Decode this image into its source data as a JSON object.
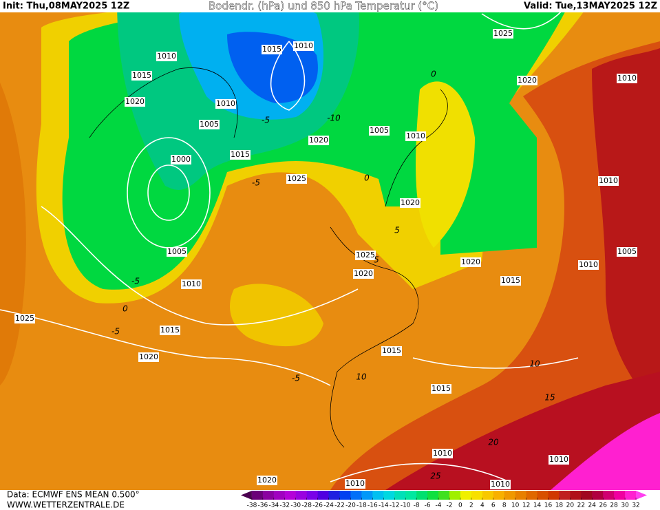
{
  "header": {
    "init": "Init: Thu,08MAY2025 12Z",
    "title": "Bodendr. (hPa) und 850 hPa Temperatur (°C)",
    "valid": "Valid: Tue,13MAY2025 12Z"
  },
  "isobar_labels": [
    "1010",
    "1015",
    "1020",
    "1010",
    "1005",
    "1000",
    "1015",
    "1015",
    "1010",
    "1025",
    "1020",
    "1010",
    "1005",
    "1010",
    "1020",
    "1025",
    "1020",
    "1010",
    "1005",
    "1010",
    "1025",
    "1020",
    "1020",
    "1015",
    "1010",
    "1005",
    "1025",
    "1015",
    "1020",
    "1015",
    "1015",
    "1010",
    "1010",
    "1020",
    "1010",
    "1010"
  ],
  "temperature_labels": [
    "0",
    "-5",
    "-10",
    "-5",
    "0",
    "5",
    "5",
    "-5",
    "0",
    "-5",
    "-5",
    "10",
    "10",
    "15",
    "20",
    "25"
  ],
  "colorbar": {
    "ticks": [
      -38,
      -36,
      -34,
      -32,
      -30,
      -28,
      -26,
      -24,
      -22,
      -20,
      -18,
      -16,
      -14,
      -12,
      -10,
      -8,
      -6,
      -4,
      -2,
      0,
      2,
      4,
      6,
      8,
      10,
      12,
      14,
      16,
      18,
      20,
      22,
      24,
      26,
      28,
      30,
      32
    ],
    "colors": [
      "#4b0050",
      "#6a0078",
      "#8a00a0",
      "#a000c0",
      "#b400d8",
      "#9a00e0",
      "#7a00e8",
      "#5000e0",
      "#2020e0",
      "#0040f0",
      "#0070f8",
      "#0098f8",
      "#00c0f0",
      "#00d8e0",
      "#00e0b8",
      "#00e8a0",
      "#00e070",
      "#10e040",
      "#40e020",
      "#a0f000",
      "#f0f000",
      "#f8e000",
      "#f8c800",
      "#f8b000",
      "#f09800",
      "#e88000",
      "#e06800",
      "#d85000",
      "#d03800",
      "#c02020",
      "#b01018",
      "#a00820",
      "#b00040",
      "#d00070",
      "#f000a0",
      "#ff20d0",
      "#ff40f0"
    ]
  },
  "footer": {
    "source": "Data: ECMWF ENS MEAN 0.500°",
    "site": "WWW.WETTERZENTRALE.DE"
  }
}
